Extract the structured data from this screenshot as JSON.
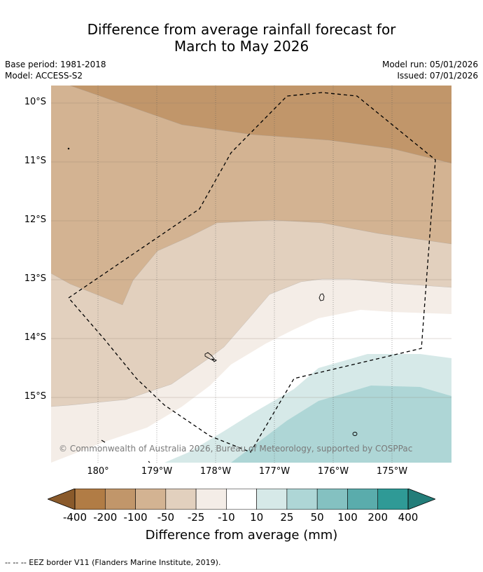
{
  "title": {
    "line1": "Difference from average rainfall forecast for",
    "line2": "March to May 2026"
  },
  "meta": {
    "base_period": "Base period: 1981-2018",
    "model": "Model: ACCESS-S2",
    "model_run": "Model run: 05/01/2026",
    "issued": "Issued: 07/01/2026"
  },
  "map": {
    "lat_labels": [
      "10°S",
      "11°S",
      "12°S",
      "13°S",
      "14°S",
      "15°S"
    ],
    "lon_labels": [
      "180°",
      "179°W",
      "178°W",
      "177°W",
      "176°W",
      "175°W"
    ],
    "copyright": "© Commonwealth of Australia 2026, Bureau of Meteorology, supported by COSPPac",
    "eez_border": "EEZ border (dashed line)",
    "islands": "island outlines"
  },
  "legend": {
    "ticks": [
      "-400",
      "-200",
      "-100",
      "-50",
      "-25",
      "-10",
      "10",
      "25",
      "50",
      "100",
      "200",
      "400"
    ],
    "colors": [
      "#8a5a2b",
      "#b17c45",
      "#c1966a",
      "#d3b392",
      "#e2d0be",
      "#f4ede7",
      "#ffffff",
      "#d6e9e8",
      "#aed6d6",
      "#84c1c1",
      "#5aacac",
      "#2f9a96",
      "#237d79"
    ],
    "label": "Difference from average (mm)"
  },
  "footnote": "--  --  -- EEZ border V11 (Flanders Marine Institute, 2019)."
}
